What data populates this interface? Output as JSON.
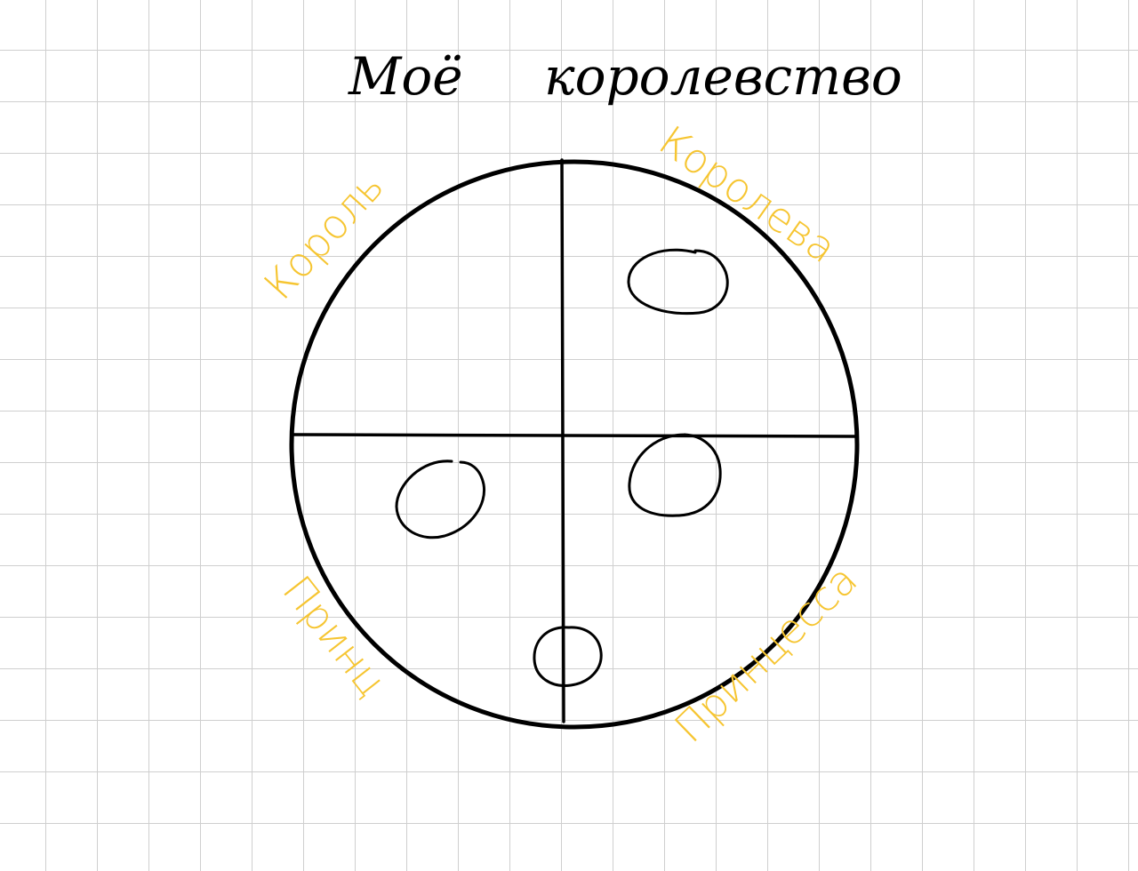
{
  "title": {
    "word1": "Моё",
    "word2": "королевство"
  },
  "labels": {
    "king": "Король",
    "queen": "Королева",
    "prince": "Принц",
    "princess": "Принцесса"
  },
  "colors": {
    "ink": "#000000",
    "labels": "#f6c531",
    "grid": "#cfcfcf",
    "paper": "#ffffff"
  }
}
